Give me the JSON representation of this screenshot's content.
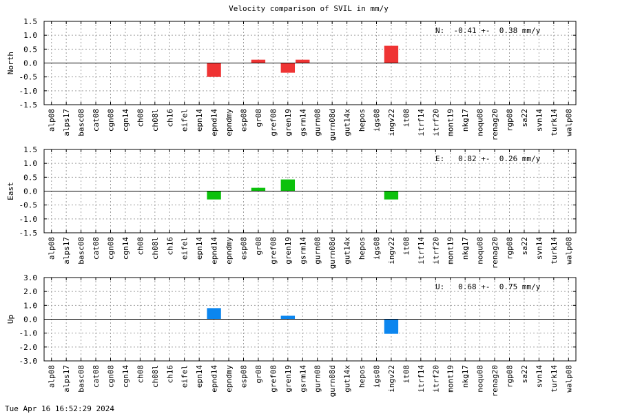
{
  "title": "Velocity comparison of SVIL in mm/y",
  "timestamp": "Tue Apr 16 16:52:29 2024",
  "chart_data": [
    {
      "type": "bar",
      "title": "",
      "ylabel": "North",
      "xlabel": "",
      "ylim": [
        -1.5,
        1.5
      ],
      "yticks": [
        "-1.5",
        "-1.0",
        "-0.5",
        "0.0",
        "0.5",
        "1.0",
        "1.5"
      ],
      "grid": true,
      "color": "#ef3434",
      "annotation": "N:  -0.41 +-  0.38 mm/y",
      "categories": [
        "alp08",
        "alps17",
        "basc08",
        "cat08",
        "cgn08",
        "cgn14",
        "ch08",
        "ch08l",
        "ch16",
        "eifel",
        "epn14",
        "epnd14",
        "epndmy",
        "esp08",
        "gr08",
        "gref08",
        "gren19",
        "gsrm14",
        "gurn08",
        "gurn08d",
        "gut14x",
        "hepos",
        "igs08",
        "ingv22",
        "it08",
        "itrf14",
        "itrf20",
        "mont19",
        "nkg17",
        "noqu08",
        "renag20",
        "rgp08",
        "sa22",
        "svn14",
        "turk14",
        "walp08"
      ],
      "values": [
        null,
        null,
        null,
        null,
        null,
        null,
        null,
        null,
        null,
        null,
        null,
        -0.5,
        null,
        null,
        0.12,
        null,
        -0.35,
        0.12,
        null,
        null,
        null,
        null,
        null,
        0.62,
        null,
        null,
        null,
        null,
        null,
        null,
        null,
        null,
        null,
        null,
        null,
        null
      ]
    },
    {
      "type": "bar",
      "title": "",
      "ylabel": "East",
      "xlabel": "",
      "ylim": [
        -1.5,
        1.5
      ],
      "yticks": [
        "-1.5",
        "-1.0",
        "-0.5",
        "0.0",
        "0.5",
        "1.0",
        "1.5"
      ],
      "grid": true,
      "color": "#0cc10c",
      "annotation": "E:   0.82 +-  0.26 mm/y",
      "categories": [
        "alp08",
        "alps17",
        "basc08",
        "cat08",
        "cgn08",
        "cgn14",
        "ch08",
        "ch08l",
        "ch16",
        "eifel",
        "epn14",
        "epnd14",
        "epndmy",
        "esp08",
        "gr08",
        "gref08",
        "gren19",
        "gsrm14",
        "gurn08",
        "gurn08d",
        "gut14x",
        "hepos",
        "igs08",
        "ingv22",
        "it08",
        "itrf14",
        "itrf20",
        "mont19",
        "nkg17",
        "noqu08",
        "renag20",
        "rgp08",
        "sa22",
        "svn14",
        "turk14",
        "walp08"
      ],
      "values": [
        null,
        null,
        null,
        null,
        null,
        null,
        null,
        null,
        null,
        null,
        null,
        -0.3,
        null,
        null,
        0.12,
        null,
        0.42,
        null,
        null,
        null,
        null,
        null,
        null,
        -0.3,
        null,
        null,
        null,
        null,
        null,
        null,
        null,
        null,
        null,
        null,
        null,
        null
      ]
    },
    {
      "type": "bar",
      "title": "",
      "ylabel": "Up",
      "xlabel": "",
      "ylim": [
        -3.0,
        3.0
      ],
      "yticks": [
        "-3.0",
        "-2.0",
        "-1.0",
        "0.0",
        "1.0",
        "2.0",
        "3.0"
      ],
      "grid": true,
      "color": "#0c86ef",
      "annotation": "U:   0.68 +-  0.75 mm/y",
      "categories": [
        "alp08",
        "alps17",
        "basc08",
        "cat08",
        "cgn08",
        "cgn14",
        "ch08",
        "ch08l",
        "ch16",
        "eifel",
        "epn14",
        "epnd14",
        "epndmy",
        "esp08",
        "gr08",
        "gref08",
        "gren19",
        "gsrm14",
        "gurn08",
        "gurn08d",
        "gut14x",
        "hepos",
        "igs08",
        "ingv22",
        "it08",
        "itrf14",
        "itrf20",
        "mont19",
        "nkg17",
        "noqu08",
        "renag20",
        "rgp08",
        "sa22",
        "svn14",
        "turk14",
        "walp08"
      ],
      "values": [
        null,
        null,
        null,
        null,
        null,
        null,
        null,
        null,
        null,
        null,
        null,
        0.8,
        null,
        null,
        null,
        null,
        0.25,
        null,
        null,
        null,
        null,
        null,
        null,
        -1.05,
        null,
        null,
        null,
        null,
        null,
        null,
        null,
        null,
        null,
        null,
        null,
        null
      ]
    }
  ]
}
